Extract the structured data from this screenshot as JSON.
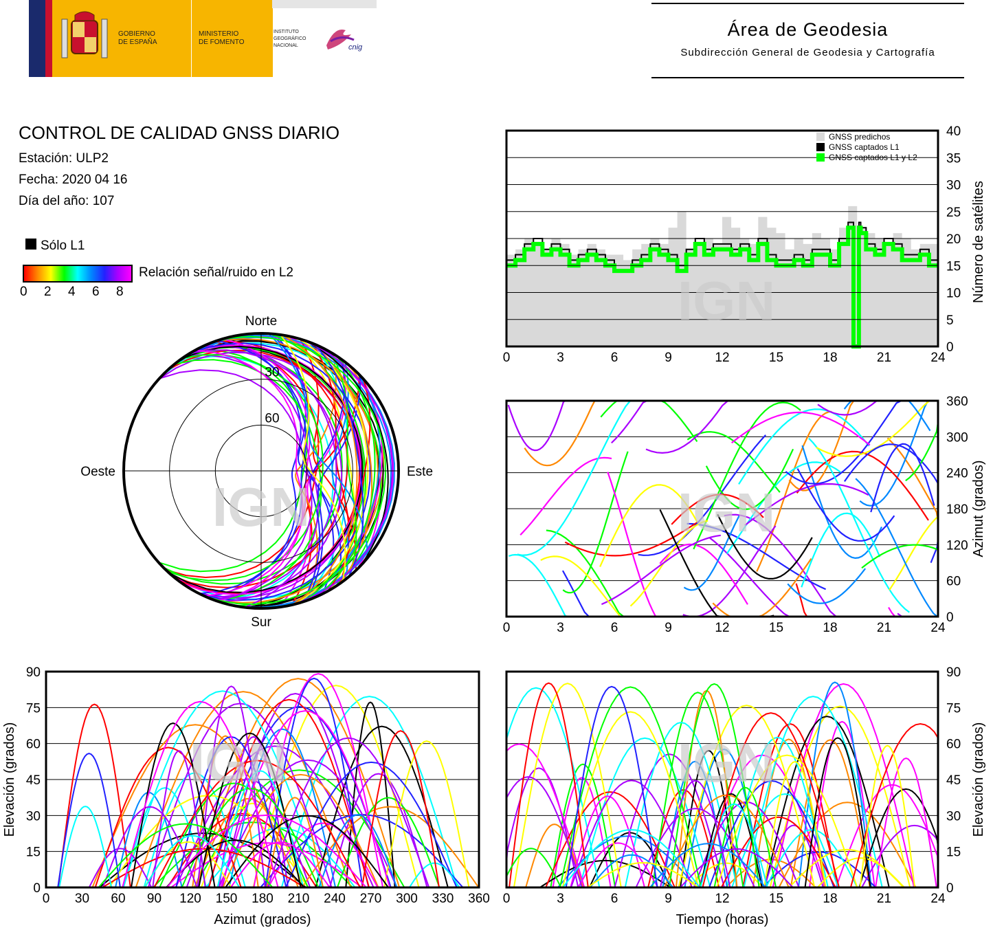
{
  "header": {
    "gov_line1": "GOBIERNO",
    "gov_line2": "DE ESPAÑA",
    "ministry_line1": "MINISTERIO",
    "ministry_line2": "DE FOMENTO",
    "inst_line1": "INSTITUTO",
    "inst_line2": "GEOGRÁFICO",
    "inst_line3": "NACIONAL",
    "logo_text": "cnig",
    "area_title": "Área de Geodesia",
    "area_subtitle": "Subdirección General de Geodesia y Cartografía",
    "colors": {
      "red": "#c8102e",
      "yellow": "#f7b500",
      "navy": "#1a2a6c"
    }
  },
  "report": {
    "title": "CONTROL DE CALIDAD GNSS DIARIO",
    "station": "Estación: ULP2",
    "date": "Fecha: 2020 04 16",
    "doy": "Día del año: 107"
  },
  "legend": {
    "solo_l1": "Sólo L1",
    "snr_label": "Relación señal/ruido en L2",
    "snr_ticks": [
      "0",
      "2",
      "4",
      "6",
      "8"
    ],
    "colors": [
      "#ff0000",
      "#ff8800",
      "#ffff00",
      "#00ff00",
      "#00ffff",
      "#0088ff",
      "#2222ff",
      "#aa00ff",
      "#ff00ff"
    ]
  },
  "watermark": "IGN",
  "chart_data": [
    {
      "type": "polar-skyplot",
      "directions": {
        "north": "Norte",
        "south": "Sur",
        "east": "Este",
        "west": "Oeste"
      },
      "rings": [
        30,
        60
      ]
    },
    {
      "type": "line",
      "ylabel": "Número de satélites",
      "xlim": [
        0,
        24
      ],
      "ylim": [
        0,
        40
      ],
      "xticks": [
        0,
        3,
        6,
        9,
        12,
        15,
        18,
        21,
        24
      ],
      "yticks": [
        0,
        5,
        10,
        15,
        20,
        25,
        30,
        35,
        40
      ],
      "legend_position": "top-right",
      "series": [
        {
          "name": "GNSS predichos",
          "color": "#d9d9d9",
          "x": [
            0,
            0.5,
            1,
            1.5,
            2,
            2.5,
            3,
            3.5,
            4,
            4.5,
            5,
            5.5,
            6,
            6.5,
            7,
            7.5,
            8,
            8.5,
            9,
            9.5,
            10,
            10.5,
            11,
            11.5,
            12,
            12.5,
            13,
            13.5,
            14,
            14.5,
            15,
            15.5,
            16,
            16.5,
            17,
            17.5,
            18,
            18.5,
            19,
            19.5,
            20,
            20.5,
            21,
            21.5,
            22,
            22.5,
            23,
            23.5,
            24
          ],
          "values": [
            17,
            18,
            20,
            19,
            18,
            20,
            19,
            17,
            18,
            19,
            18,
            17,
            17,
            16,
            18,
            19,
            20,
            19,
            22,
            25,
            18,
            19,
            20,
            19,
            24,
            22,
            20,
            19,
            24,
            22,
            21,
            18,
            20,
            19,
            21,
            20,
            18,
            22,
            26,
            22,
            21,
            20,
            19,
            21,
            20,
            18,
            19,
            19,
            18
          ]
        },
        {
          "name": "GNSS captados L1",
          "color": "#000000",
          "x": [
            0,
            0.5,
            1,
            1.5,
            2,
            2.5,
            3,
            3.5,
            4,
            4.5,
            5,
            5.5,
            6,
            6.5,
            7,
            7.5,
            8,
            8.5,
            9,
            9.5,
            10,
            10.5,
            11,
            11.5,
            12,
            12.5,
            13,
            13.5,
            14,
            14.5,
            15,
            15.5,
            16,
            16.5,
            17,
            17.5,
            18,
            18.5,
            19,
            19.3,
            19.4,
            19.6,
            19.7,
            20,
            20.5,
            21,
            21.5,
            22,
            22.5,
            23,
            23.5,
            24
          ],
          "values": [
            16,
            17,
            19,
            20,
            18,
            19,
            18,
            16,
            17,
            18,
            17,
            16,
            14,
            14,
            16,
            17,
            19,
            18,
            17,
            15,
            18,
            20,
            18,
            19,
            19,
            18,
            19,
            17,
            20,
            17,
            16,
            16,
            17,
            16,
            18,
            18,
            16,
            20,
            23,
            0,
            0,
            23,
            22,
            19,
            18,
            20,
            19,
            17,
            17,
            18,
            16,
            16
          ]
        },
        {
          "name": "GNSS captados L1 y L2",
          "color": "#00ff00",
          "x": [
            0,
            0.5,
            1,
            1.5,
            2,
            2.5,
            3,
            3.5,
            4,
            4.5,
            5,
            5.5,
            6,
            6.5,
            7,
            7.5,
            8,
            8.5,
            9,
            9.5,
            10,
            10.5,
            11,
            11.5,
            12,
            12.5,
            13,
            13.5,
            14,
            14.5,
            15,
            15.5,
            16,
            16.5,
            17,
            17.5,
            18,
            18.5,
            19,
            19.3,
            19.4,
            19.6,
            19.7,
            20,
            20.5,
            21,
            21.5,
            22,
            22.5,
            23,
            23.5,
            24
          ],
          "values": [
            15,
            16,
            18,
            19,
            17,
            18,
            17,
            15,
            16,
            17,
            16,
            15,
            14,
            14,
            15,
            16,
            18,
            17,
            16,
            14,
            17,
            19,
            17,
            18,
            18,
            17,
            18,
            16,
            19,
            16,
            15,
            15,
            16,
            15,
            17,
            17,
            15,
            19,
            22,
            0,
            0,
            22,
            21,
            18,
            17,
            19,
            18,
            16,
            16,
            17,
            15,
            15
          ]
        }
      ]
    },
    {
      "type": "scatter",
      "ylabel": "Azimut (grados)",
      "xlim": [
        0,
        24
      ],
      "ylim": [
        0,
        360
      ],
      "xticks": [
        0,
        3,
        6,
        9,
        12,
        15,
        18,
        21,
        24
      ],
      "yticks": [
        0,
        60,
        120,
        180,
        240,
        300,
        360
      ]
    },
    {
      "type": "scatter",
      "xlabel": "Azimut (grados)",
      "ylabel": "Elevación (grados)",
      "xlim": [
        0,
        360
      ],
      "ylim": [
        0,
        90
      ],
      "xticks": [
        0,
        30,
        60,
        90,
        120,
        150,
        180,
        210,
        240,
        270,
        300,
        330,
        360
      ],
      "yticks": [
        0,
        15,
        30,
        45,
        60,
        75,
        90
      ]
    },
    {
      "type": "line",
      "xlabel": "Tiempo (horas)",
      "ylabel": "Elevación (grados)",
      "xlim": [
        0,
        24
      ],
      "ylim": [
        0,
        90
      ],
      "xticks": [
        0,
        3,
        6,
        9,
        12,
        15,
        18,
        21,
        24
      ],
      "yticks": [
        0,
        15,
        30,
        45,
        60,
        75,
        90
      ]
    }
  ]
}
